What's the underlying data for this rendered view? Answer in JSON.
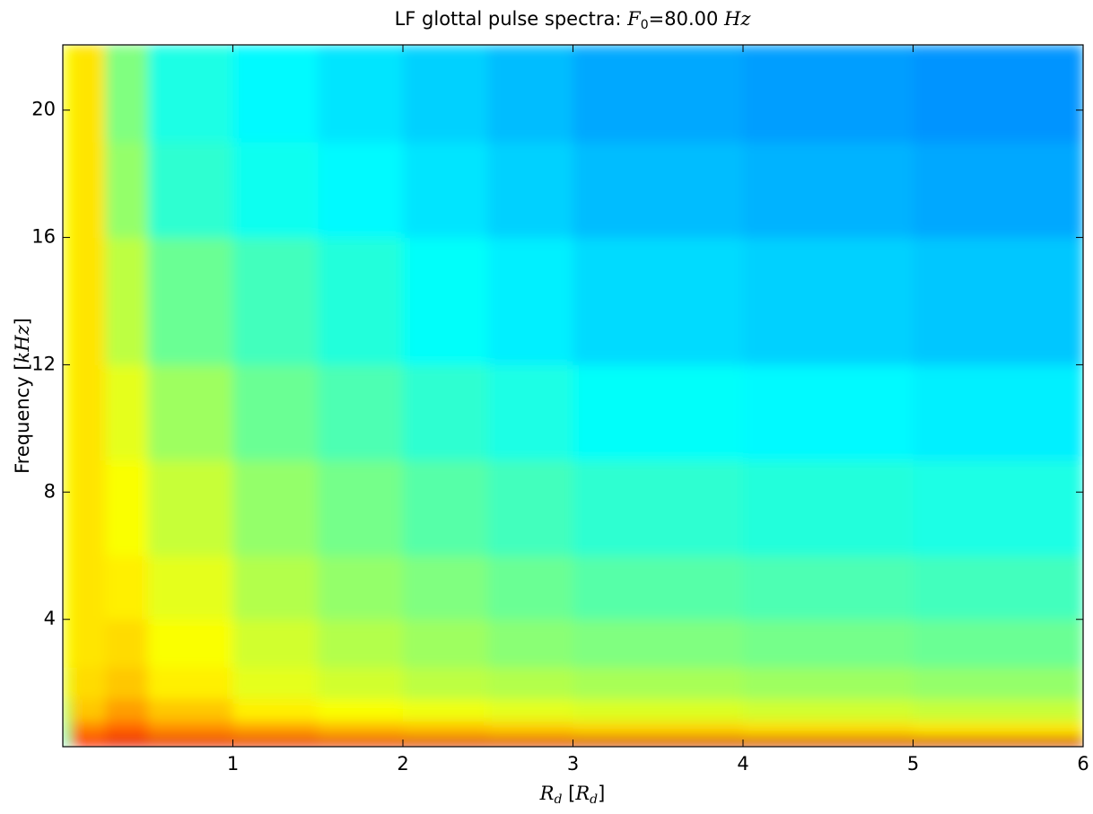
{
  "chart_data": {
    "type": "heatmap",
    "title": {
      "text": "LF glottal pulse spectra: ",
      "symbol": "F",
      "subscript": "0",
      "value": "=80.00 ",
      "unit": "Hz"
    },
    "x_label": {
      "symbol": "R",
      "subscript": "d",
      "open": " [",
      "unit_symbol": "R",
      "unit_subscript": "d",
      "close": "]"
    },
    "y_label": {
      "text": "Frequency ",
      "open": "[",
      "unit": "kHz",
      "close": "]"
    },
    "colormap": "jet",
    "xlim": [
      0,
      6
    ],
    "ylim": [
      0,
      22.05
    ],
    "xticks": [
      1,
      2,
      3,
      4,
      5,
      6
    ],
    "yticks": [
      4,
      8,
      12,
      16,
      20
    ],
    "x_edges": [
      0,
      0.05,
      0.25,
      0.5,
      1,
      1.5,
      2,
      2.5,
      3,
      4,
      5,
      6
    ],
    "y_edges": [
      0,
      0.3,
      0.8,
      1.5,
      2.5,
      4,
      6,
      9,
      12,
      16,
      19,
      22.05
    ],
    "z": [
      [
        0.45,
        0.88,
        0.9,
        0.9,
        0.9,
        0.9,
        0.91,
        0.91,
        0.92,
        0.92,
        0.92
      ],
      [
        0.5,
        0.75,
        0.78,
        0.74,
        0.72,
        0.7,
        0.69,
        0.68,
        0.67,
        0.66,
        0.65
      ],
      [
        0.55,
        0.68,
        0.72,
        0.68,
        0.64,
        0.62,
        0.61,
        0.6,
        0.59,
        0.58,
        0.57
      ],
      [
        0.6,
        0.66,
        0.68,
        0.64,
        0.6,
        0.58,
        0.56,
        0.55,
        0.54,
        0.53,
        0.52
      ],
      [
        0.62,
        0.65,
        0.66,
        0.62,
        0.58,
        0.55,
        0.53,
        0.51,
        0.5,
        0.49,
        0.48
      ],
      [
        0.62,
        0.65,
        0.64,
        0.6,
        0.55,
        0.52,
        0.5,
        0.48,
        0.46,
        0.45,
        0.44
      ],
      [
        0.62,
        0.65,
        0.62,
        0.57,
        0.52,
        0.49,
        0.46,
        0.44,
        0.42,
        0.41,
        0.4
      ],
      [
        0.62,
        0.65,
        0.6,
        0.53,
        0.48,
        0.45,
        0.42,
        0.4,
        0.38,
        0.37,
        0.36
      ],
      [
        0.62,
        0.65,
        0.56,
        0.48,
        0.44,
        0.41,
        0.38,
        0.36,
        0.34,
        0.33,
        0.32
      ],
      [
        0.62,
        0.65,
        0.52,
        0.42,
        0.39,
        0.37,
        0.35,
        0.33,
        0.31,
        0.3,
        0.29
      ],
      [
        0.62,
        0.65,
        0.5,
        0.4,
        0.37,
        0.35,
        0.33,
        0.31,
        0.29,
        0.28,
        0.27
      ]
    ]
  }
}
